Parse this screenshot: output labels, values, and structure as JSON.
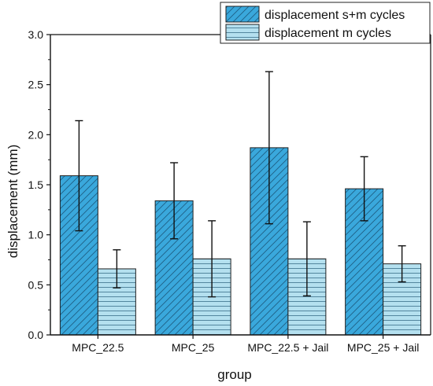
{
  "chart_data": {
    "type": "bar",
    "categories": [
      "MPC_22.5",
      "MPC_25",
      "MPC_22.5 + Jail",
      "MPC_25 + Jail"
    ],
    "series": [
      {
        "name": "displacement s+m cycles",
        "values": [
          1.59,
          1.34,
          1.87,
          1.46
        ],
        "error_low": [
          1.04,
          0.96,
          1.11,
          1.14
        ],
        "error_high": [
          2.14,
          1.72,
          2.63,
          1.78
        ],
        "color": "#3aa8dc",
        "pattern": "diagonal-hatch"
      },
      {
        "name": "displacement m cycles",
        "values": [
          0.66,
          0.76,
          0.76,
          0.71
        ],
        "error_low": [
          0.47,
          0.38,
          0.39,
          0.53
        ],
        "error_high": [
          0.85,
          1.14,
          1.13,
          0.89
        ],
        "color": "#b4e0ef",
        "pattern": "horizontal-lines"
      }
    ],
    "xlabel": "group",
    "ylabel": "displacement (mm)",
    "ylim": [
      0,
      3.0
    ],
    "yticks": [
      "0.0",
      "0.5",
      "1.0",
      "1.5",
      "2.0",
      "2.5",
      "3.0"
    ],
    "grid": false,
    "legend_position": "top-right"
  }
}
